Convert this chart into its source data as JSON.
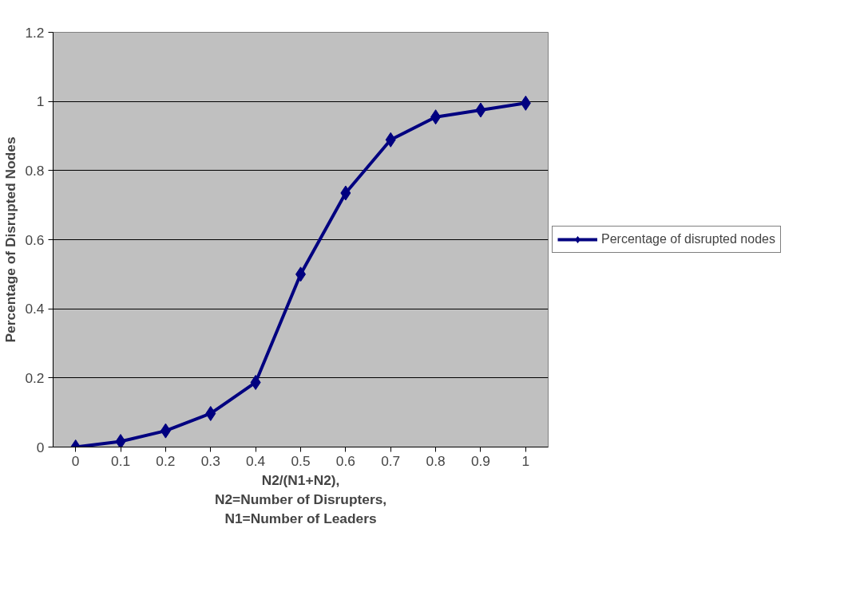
{
  "chart_data": {
    "type": "line",
    "xlabel": "N2/(N1+N2),\nN2=Number of Disrupters,\nN1=Number of Leaders",
    "ylabel": "Percentage of Disrupted Nodes",
    "categories": [
      "0",
      "0.1",
      "0.2",
      "0.3",
      "0.4",
      "0.5",
      "0.6",
      "0.7",
      "0.8",
      "0.9",
      "1"
    ],
    "series": [
      {
        "name": "Percentage of disrupted nodes",
        "color": "#000080",
        "values": [
          0,
          0.016,
          0.047,
          0.097,
          0.187,
          0.5,
          0.735,
          0.889,
          0.955,
          0.975,
          0.995
        ]
      }
    ],
    "ylim": [
      0,
      1.2
    ],
    "yticks": [
      0,
      0.2,
      0.4,
      0.6,
      0.8,
      1,
      1.2
    ],
    "grid": "y",
    "legend": "right",
    "marker": "diamond",
    "line_style": "solid"
  }
}
